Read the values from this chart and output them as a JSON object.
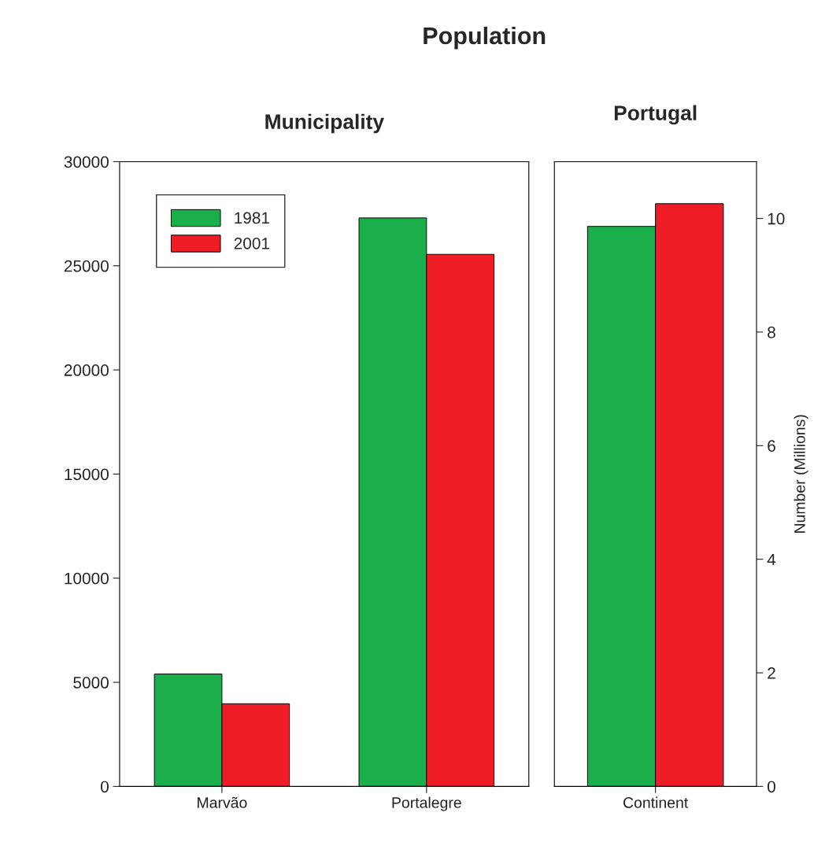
{
  "chart_data": [
    {
      "type": "bar",
      "title": "Population",
      "subtitle": "Municipality",
      "categories": [
        "Marvão",
        "Portalegre"
      ],
      "series": [
        {
          "name": "1981",
          "color": "#1aaf4b",
          "values": [
            5400,
            27300
          ]
        },
        {
          "name": "2001",
          "color": "#ee1c25",
          "values": [
            3970,
            25550
          ]
        }
      ],
      "ylim": [
        0,
        30000
      ],
      "yticks": [
        0,
        5000,
        10000,
        15000,
        20000,
        25000,
        30000
      ],
      "grid": false,
      "legend": "top left"
    },
    {
      "type": "bar",
      "title": "Portugal",
      "categories": [
        "Continent"
      ],
      "series": [
        {
          "color": "#1aaf4b",
          "values": [
            9.86
          ],
          "axis": "y2"
        },
        {
          "color": "#ee1c25",
          "values": [
            10.26
          ],
          "axis": "y2"
        }
      ],
      "y2lim": [
        0,
        11
      ],
      "y2ticks": [
        0,
        2,
        4,
        6,
        8,
        10
      ],
      "y2label": "Number (Millions)",
      "grid": false,
      "legend": false
    }
  ]
}
